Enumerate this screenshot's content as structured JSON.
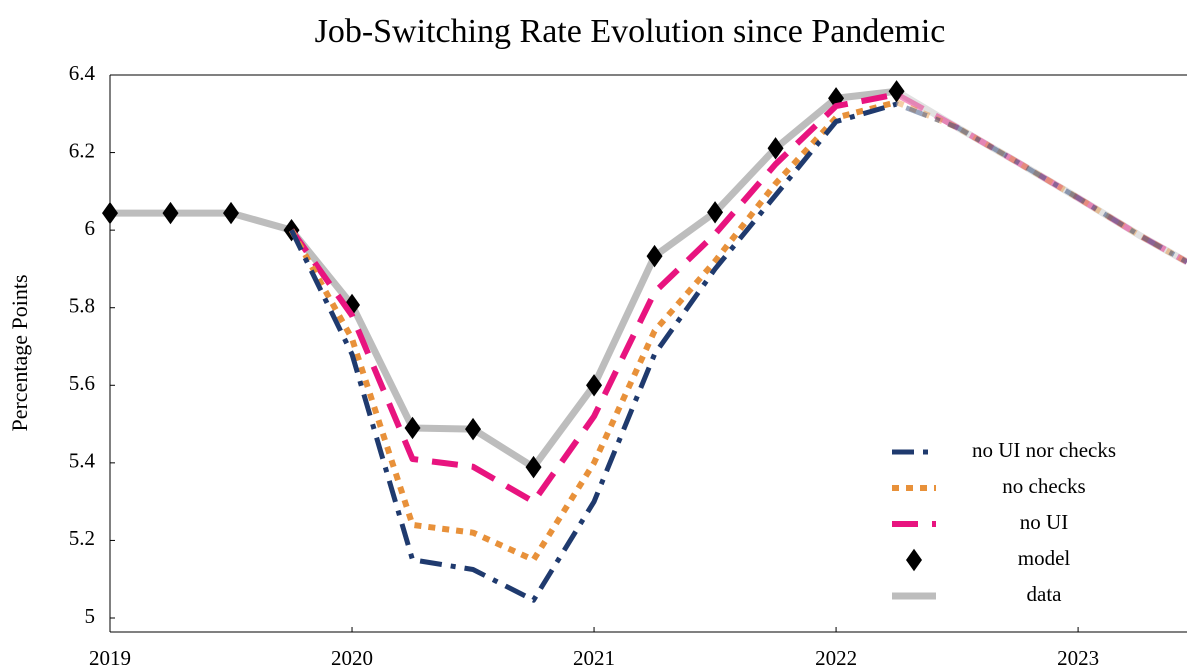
{
  "chart_data": {
    "type": "line",
    "title": "Job-Switching Rate Evolution since Pandemic",
    "y_label": "Percentage Points",
    "x": [
      2019,
      2019.25,
      2019.5,
      2019.75,
      2020,
      2020.25,
      2020.5,
      2020.75,
      2021,
      2021.25,
      2021.5,
      2021.75,
      2022,
      2022.25,
      2022.5,
      2022.75,
      2023,
      2023.25,
      2023.45
    ],
    "xlim": [
      2019,
      2023.45
    ],
    "xticks": [
      2019,
      2020,
      2021,
      2022,
      2023
    ],
    "ylim": [
      5,
      6.4
    ],
    "yticks": [
      5,
      5.2,
      5.4,
      5.6,
      5.8,
      6,
      6.2,
      6.4
    ],
    "series": [
      {
        "name": "no UI nor checks",
        "color": "#1f3a6e",
        "linestyle": "dashdot",
        "values": [
          null,
          null,
          null,
          6.0,
          5.68,
          5.15,
          5.125,
          5.046,
          5.3,
          5.68,
          5.9,
          6.09,
          6.28,
          6.325,
          6.265,
          6.175,
          6.083,
          5.988,
          5.918
        ]
      },
      {
        "name": "no checks",
        "color": "#e8913a",
        "linestyle": "dotted",
        "values": [
          null,
          null,
          null,
          6.0,
          5.72,
          5.24,
          5.22,
          5.15,
          5.4,
          5.74,
          5.92,
          6.12,
          6.29,
          6.33,
          6.265,
          6.175,
          6.083,
          5.988,
          5.918
        ]
      },
      {
        "name": "no UI",
        "color": "#e8147f",
        "linestyle": "dashed",
        "values": [
          null,
          null,
          null,
          6.0,
          5.78,
          5.41,
          5.39,
          5.3,
          5.52,
          5.84,
          5.99,
          6.17,
          6.32,
          6.35,
          6.265,
          6.175,
          6.083,
          5.988,
          5.918
        ]
      },
      {
        "name": "model",
        "color": "#000000",
        "marker": "diamond",
        "values": [
          6.044,
          6.044,
          6.044,
          6.0,
          5.807,
          5.49,
          5.487,
          5.389,
          5.6,
          5.933,
          6.046,
          6.211,
          6.34,
          6.358,
          null,
          null,
          null,
          null,
          null
        ]
      },
      {
        "name": "data",
        "color": "#bdbdbd",
        "linestyle": "solid",
        "values": [
          6.044,
          6.044,
          6.044,
          6.0,
          5.807,
          5.49,
          5.487,
          5.389,
          5.6,
          5.933,
          6.046,
          6.211,
          6.34,
          6.358,
          6.265,
          6.175,
          6.083,
          5.988,
          5.918
        ]
      }
    ]
  }
}
